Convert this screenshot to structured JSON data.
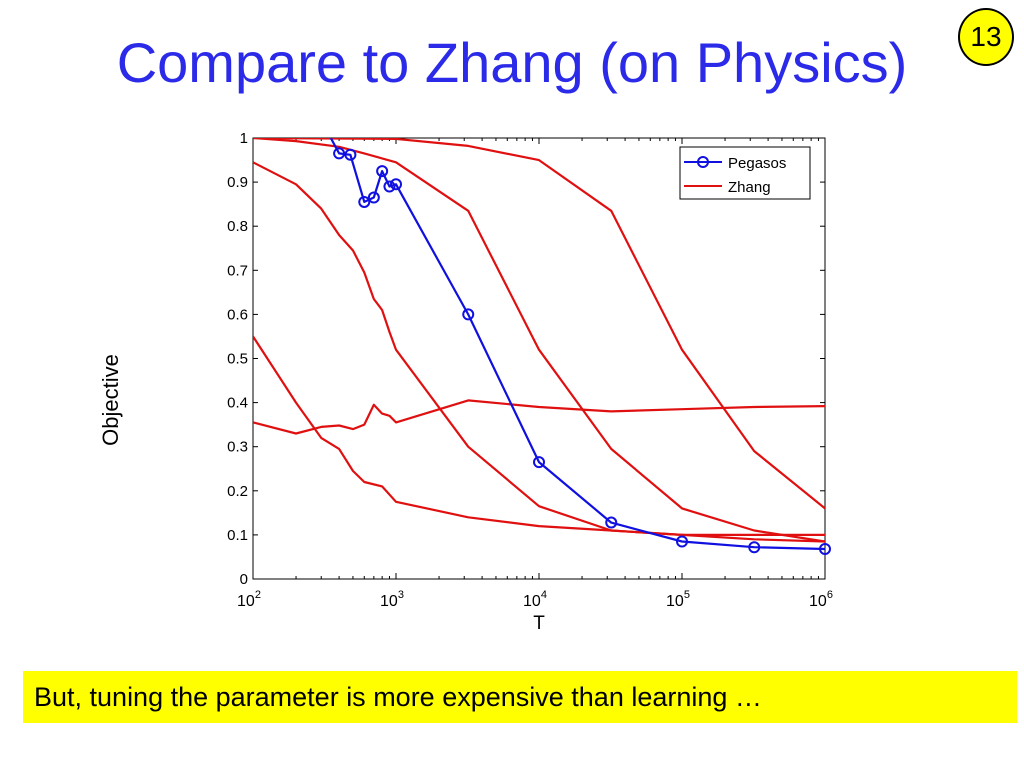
{
  "slide": {
    "title": "Compare to Zhang (on Physics)",
    "page_number": "13",
    "caption": "But, tuning the parameter is more expensive than learning …"
  },
  "chart_data": {
    "type": "line",
    "title": "",
    "xlabel": "T",
    "ylabel": "Objective",
    "xscale": "log",
    "xlim": [
      100,
      1000000
    ],
    "ylim": [
      0,
      1
    ],
    "x_ticks": [
      {
        "value": 100,
        "base": "10",
        "exp": "2"
      },
      {
        "value": 1000,
        "base": "10",
        "exp": "3"
      },
      {
        "value": 10000,
        "base": "10",
        "exp": "4"
      },
      {
        "value": 100000,
        "base": "10",
        "exp": "5"
      },
      {
        "value": 1000000,
        "base": "10",
        "exp": "6"
      }
    ],
    "y_ticks": [
      "0",
      "0.1",
      "0.2",
      "0.3",
      "0.4",
      "0.5",
      "0.6",
      "0.7",
      "0.8",
      "0.9",
      "1"
    ],
    "grid": false,
    "legend_position": "top-right",
    "colors": {
      "pegasos": "#1010e0",
      "zhang": "#e01010"
    },
    "series": [
      {
        "name": "Pegasos",
        "color": "#1010e0",
        "marker": "circle",
        "points": [
          [
            350,
            1.0
          ],
          [
            400,
            0.965
          ],
          [
            480,
            0.962
          ],
          [
            600,
            0.855
          ],
          [
            700,
            0.865
          ],
          [
            800,
            0.925
          ],
          [
            900,
            0.89
          ],
          [
            1000,
            0.895
          ],
          [
            3200,
            0.6
          ],
          [
            10000,
            0.265
          ],
          [
            32000,
            0.128
          ],
          [
            100000,
            0.085
          ],
          [
            320000,
            0.072
          ],
          [
            1000000,
            0.068
          ]
        ],
        "marker_points": [
          [
            400,
            0.965
          ],
          [
            480,
            0.962
          ],
          [
            600,
            0.855
          ],
          [
            700,
            0.865
          ],
          [
            800,
            0.925
          ],
          [
            900,
            0.89
          ],
          [
            1000,
            0.895
          ],
          [
            3200,
            0.6
          ],
          [
            10000,
            0.265
          ],
          [
            32000,
            0.128
          ],
          [
            100000,
            0.085
          ],
          [
            320000,
            0.072
          ],
          [
            1000000,
            0.068
          ]
        ]
      },
      {
        "name": "Zhang",
        "color": "#e01010",
        "points": [
          [
            100,
            1.0
          ],
          [
            1000,
            0.998
          ],
          [
            3200,
            0.982
          ],
          [
            10000,
            0.95
          ],
          [
            32000,
            0.835
          ],
          [
            100000,
            0.52
          ],
          [
            320000,
            0.29
          ],
          [
            1000000,
            0.16
          ]
        ]
      },
      {
        "color": "#e01010",
        "points": [
          [
            100,
            1.0
          ],
          [
            200,
            0.993
          ],
          [
            400,
            0.98
          ],
          [
            600,
            0.965
          ],
          [
            1000,
            0.945
          ],
          [
            3200,
            0.835
          ],
          [
            10000,
            0.52
          ],
          [
            32000,
            0.295
          ],
          [
            100000,
            0.16
          ],
          [
            320000,
            0.11
          ],
          [
            1000000,
            0.085
          ]
        ]
      },
      {
        "color": "#e01010",
        "points": [
          [
            100,
            0.945
          ],
          [
            200,
            0.895
          ],
          [
            300,
            0.84
          ],
          [
            400,
            0.78
          ],
          [
            500,
            0.745
          ],
          [
            600,
            0.695
          ],
          [
            700,
            0.635
          ],
          [
            800,
            0.61
          ],
          [
            900,
            0.56
          ],
          [
            1000,
            0.52
          ],
          [
            3200,
            0.3
          ],
          [
            10000,
            0.165
          ],
          [
            32000,
            0.11
          ],
          [
            100000,
            0.1
          ],
          [
            320000,
            0.1
          ],
          [
            1000000,
            0.1
          ]
        ]
      },
      {
        "color": "#e01010",
        "points": [
          [
            100,
            0.55
          ],
          [
            200,
            0.4
          ],
          [
            300,
            0.32
          ],
          [
            400,
            0.295
          ],
          [
            500,
            0.245
          ],
          [
            600,
            0.22
          ],
          [
            800,
            0.21
          ],
          [
            1000,
            0.175
          ],
          [
            3200,
            0.14
          ],
          [
            10000,
            0.12
          ],
          [
            32000,
            0.11
          ],
          [
            100000,
            0.1
          ],
          [
            320000,
            0.09
          ],
          [
            1000000,
            0.085
          ]
        ]
      },
      {
        "color": "#e01010",
        "points": [
          [
            100,
            0.355
          ],
          [
            200,
            0.33
          ],
          [
            300,
            0.345
          ],
          [
            400,
            0.348
          ],
          [
            500,
            0.34
          ],
          [
            600,
            0.35
          ],
          [
            700,
            0.395
          ],
          [
            800,
            0.375
          ],
          [
            900,
            0.37
          ],
          [
            1000,
            0.355
          ],
          [
            3200,
            0.405
          ],
          [
            10000,
            0.39
          ],
          [
            32000,
            0.38
          ],
          [
            100000,
            0.385
          ],
          [
            320000,
            0.39
          ],
          [
            1000000,
            0.392
          ]
        ]
      }
    ]
  }
}
